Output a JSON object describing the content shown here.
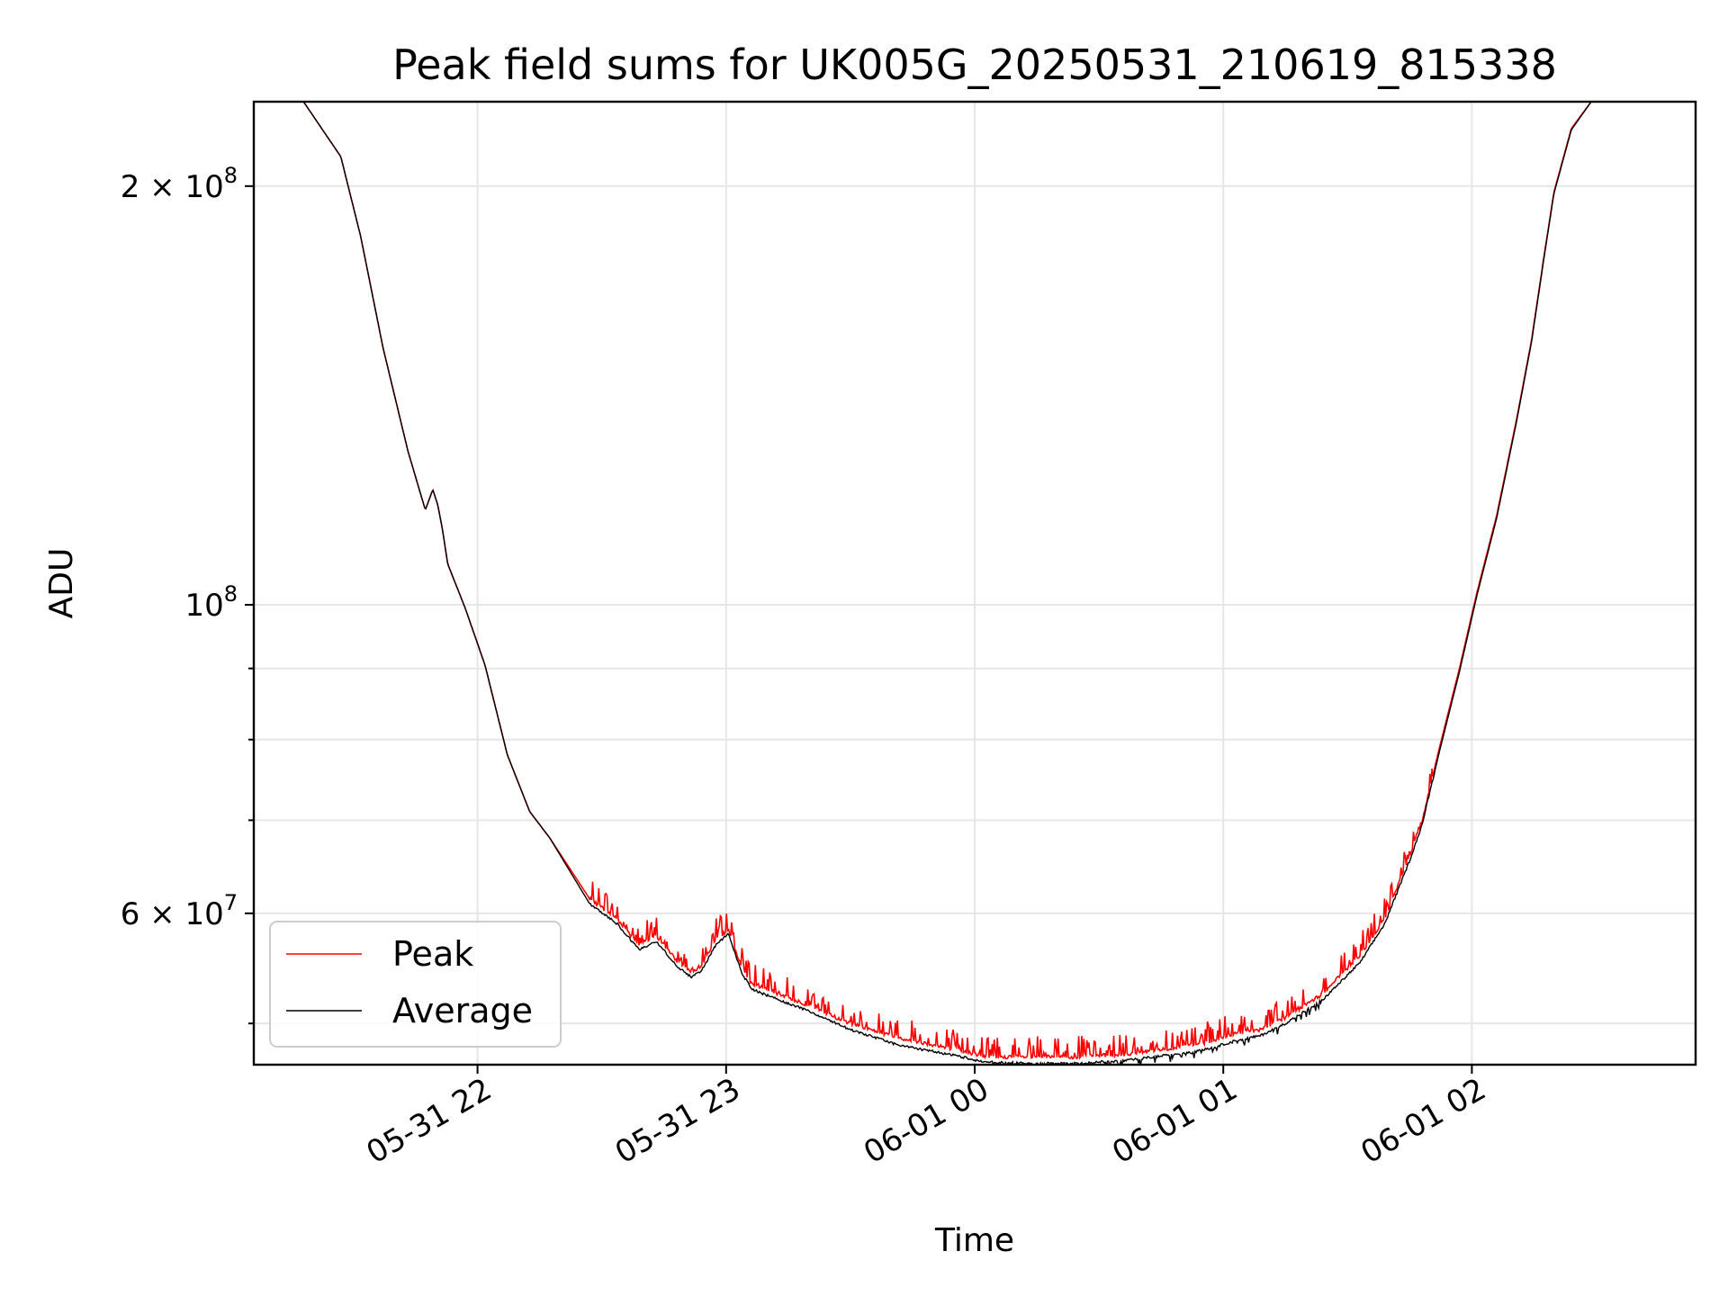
{
  "chart_data": {
    "type": "line",
    "title": "Peak field sums for UK005G_20250531_210619_815338",
    "xlabel": "Time",
    "ylabel": "ADU",
    "yscale": "log",
    "grid": true,
    "legend_position": "lower-left",
    "x_unit": "hours since 2025-05-31 21:06",
    "xlim": [
      0,
      5.8
    ],
    "ylim": [
      46700000,
      230000000
    ],
    "x_ticks": [
      {
        "value": 0.9,
        "label": "05-31 22"
      },
      {
        "value": 1.9,
        "label": "05-31 23"
      },
      {
        "value": 2.9,
        "label": "06-01 00"
      },
      {
        "value": 3.9,
        "label": "06-01 01"
      },
      {
        "value": 4.9,
        "label": "06-01 02"
      }
    ],
    "y_ticks_major": [
      {
        "value": 60000000,
        "label": "6 × 10⁷",
        "mantissa": "6",
        "exponent": "7"
      },
      {
        "value": 100000000,
        "label": "10⁸",
        "mantissa": "",
        "exponent": "8"
      },
      {
        "value": 200000000,
        "label": "2 × 10⁸",
        "mantissa": "2",
        "exponent": "8"
      }
    ],
    "y_ticks_minor": [
      50000000,
      70000000,
      80000000,
      90000000
    ],
    "series": [
      {
        "name": "Peak",
        "color": "#ff0000",
        "noise": "spiky",
        "x": [
          0,
          0.2,
          0.35,
          0.43,
          0.52,
          0.62,
          0.69,
          0.72,
          0.74,
          0.76,
          0.78,
          0.85,
          0.93,
          1.02,
          1.11,
          1.19,
          1.35,
          1.46,
          1.55,
          1.62,
          1.7,
          1.76,
          1.8,
          1.86,
          1.91,
          1.96,
          2.0,
          2.05,
          2.2,
          2.4,
          2.6,
          2.8,
          2.95,
          3.1,
          3.3,
          3.5,
          3.7,
          3.85,
          3.95,
          4.05,
          4.15,
          4.3,
          4.45,
          4.55,
          4.65,
          4.7,
          4.77,
          4.85,
          4.92,
          5.0,
          5.08,
          5.14,
          5.19,
          5.23,
          5.3,
          5.38,
          5.45,
          5.8
        ],
        "values": [
          230000000,
          230000000,
          210000000,
          184000000,
          153000000,
          129000000,
          117000000,
          121000000,
          118000000,
          113000000,
          107000000,
          99500000,
          90500000,
          78000000,
          71000000,
          68000000,
          61500000,
          59500000,
          57000000,
          57800000,
          55500000,
          54500000,
          55000000,
          57500000,
          58400000,
          55000000,
          53500000,
          53000000,
          51800000,
          50000000,
          48800000,
          48000000,
          47300000,
          47300000,
          47300000,
          47500000,
          48000000,
          48500000,
          49200000,
          49500000,
          50500000,
          52500000,
          56000000,
          59500000,
          66000000,
          70000000,
          79000000,
          90000000,
          102000000,
          116000000,
          136000000,
          155000000,
          178000000,
          198000000,
          220000000,
          230000000,
          230000000,
          230000000
        ]
      },
      {
        "name": "Average",
        "color": "#000000",
        "noise": "smooth",
        "x": [
          0,
          0.2,
          0.35,
          0.43,
          0.52,
          0.62,
          0.69,
          0.72,
          0.74,
          0.76,
          0.78,
          0.85,
          0.93,
          1.02,
          1.11,
          1.19,
          1.35,
          1.46,
          1.55,
          1.62,
          1.7,
          1.76,
          1.8,
          1.86,
          1.91,
          1.96,
          2.0,
          2.05,
          2.2,
          2.4,
          2.6,
          2.8,
          2.95,
          3.1,
          3.3,
          3.5,
          3.7,
          3.85,
          3.95,
          4.05,
          4.15,
          4.3,
          4.45,
          4.55,
          4.65,
          4.7,
          4.77,
          4.85,
          4.92,
          5.0,
          5.08,
          5.14,
          5.19,
          5.23,
          5.3,
          5.38,
          5.45,
          5.8
        ],
        "values": [
          230000000,
          230000000,
          210000000,
          184000000,
          153000000,
          129000000,
          117000000,
          121000000,
          118000000,
          113000000,
          107000000,
          99500000,
          90500000,
          78000000,
          71000000,
          68000000,
          61000000,
          59000000,
          56500000,
          57300000,
          55000000,
          54000000,
          54500000,
          57000000,
          58000000,
          54500000,
          53000000,
          52500000,
          51300000,
          49500000,
          48200000,
          47500000,
          46900000,
          46800000,
          46800000,
          47000000,
          47500000,
          48000000,
          48600000,
          49000000,
          50000000,
          52000000,
          55300000,
          59000000,
          65500000,
          69500000,
          78500000,
          89500000,
          101500000,
          115500000,
          135500000,
          154500000,
          177500000,
          197500000,
          219500000,
          230000000,
          230000000,
          230000000
        ]
      }
    ]
  }
}
